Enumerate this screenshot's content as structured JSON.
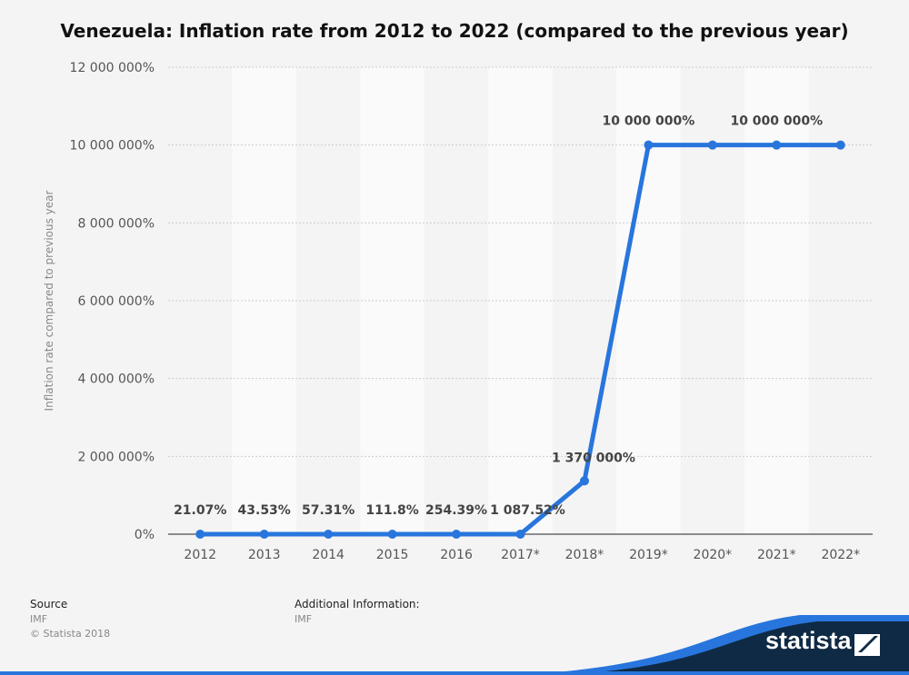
{
  "chart_data": {
    "type": "line",
    "title": "Venezuela: Inflation rate from 2012 to 2022 (compared to the previous year)",
    "ylabel": "Inflation rate compared to previous year",
    "xlabel": "",
    "categories": [
      "2012",
      "2013",
      "2014",
      "2015",
      "2016",
      "2017*",
      "2018*",
      "2019*",
      "2020*",
      "2021*",
      "2022*"
    ],
    "values": [
      21.07,
      43.53,
      57.31,
      111.8,
      254.39,
      1087.52,
      1370000,
      10000000,
      10000000,
      10000000,
      10000000
    ],
    "data_labels": [
      "21.07%",
      "43.53%",
      "57.31%",
      "111.8%",
      "254.39%",
      "1 087.52%",
      "1 370 000%",
      "10 000 000%",
      null,
      "10 000 000%",
      null
    ],
    "ylim": [
      0,
      12000000
    ],
    "yticks": [
      0,
      2000000,
      4000000,
      6000000,
      8000000,
      10000000,
      12000000
    ],
    "ytick_labels": [
      "0%",
      "2 000 000%",
      "4 000 000%",
      "6 000 000%",
      "8 000 000%",
      "10 000 000%",
      "12 000 000%"
    ],
    "grid": true,
    "colors": {
      "line": "#2876dd",
      "background": "#f4f4f4",
      "band": "#fafafa"
    }
  },
  "footer": {
    "source_label": "Source",
    "source_value": "IMF",
    "copyright": "© Statista 2018",
    "additional_label": "Additional Information:",
    "additional_value": "IMF",
    "logo_text": "statista"
  }
}
